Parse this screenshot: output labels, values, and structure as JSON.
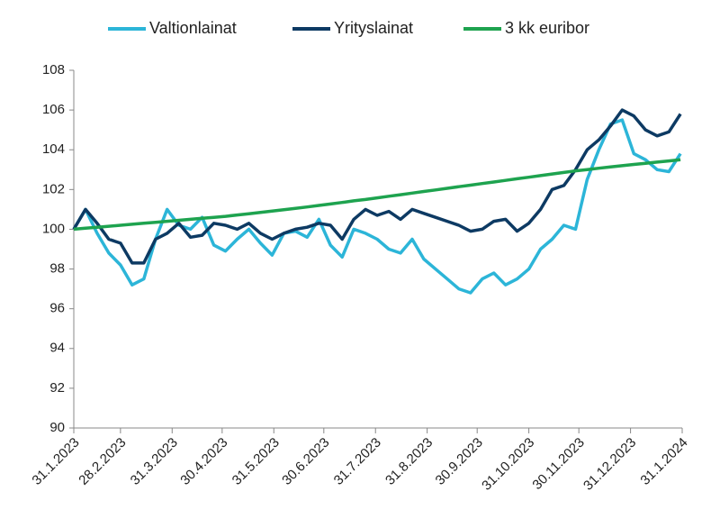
{
  "chart_data": {
    "type": "line",
    "x": [
      "31.1.2023",
      "7.2.2023",
      "14.2.2023",
      "21.2.2023",
      "28.2.2023",
      "7.3.2023",
      "14.3.2023",
      "21.3.2023",
      "28.3.2023",
      "4.4.2023",
      "11.4.2023",
      "18.4.2023",
      "25.4.2023",
      "2.5.2023",
      "9.5.2023",
      "16.5.2023",
      "23.5.2023",
      "30.5.2023",
      "6.6.2023",
      "13.6.2023",
      "20.6.2023",
      "27.6.2023",
      "4.7.2023",
      "11.7.2023",
      "18.7.2023",
      "25.7.2023",
      "1.8.2023",
      "8.8.2023",
      "15.8.2023",
      "22.8.2023",
      "29.8.2023",
      "5.9.2023",
      "12.9.2023",
      "19.9.2023",
      "26.9.2023",
      "3.10.2023",
      "10.10.2023",
      "17.10.2023",
      "24.10.2023",
      "31.10.2023",
      "7.11.2023",
      "14.11.2023",
      "21.11.2023",
      "28.11.2023",
      "5.12.2023",
      "12.12.2023",
      "19.12.2023",
      "26.12.2023",
      "2.1.2024",
      "9.1.2024",
      "16.1.2024",
      "23.1.2024",
      "30.1.2024"
    ],
    "series": [
      {
        "name": "Valtionlainat",
        "color": "#2cb5d8",
        "values": [
          100,
          101.0,
          99.8,
          98.8,
          98.2,
          97.2,
          97.5,
          99.5,
          101.0,
          100.2,
          100.0,
          100.6,
          99.2,
          98.9,
          99.5,
          100.0,
          99.3,
          98.7,
          99.8,
          99.9,
          99.6,
          100.5,
          99.2,
          98.6,
          100.0,
          99.8,
          99.5,
          99.0,
          98.8,
          99.5,
          98.5,
          98.0,
          97.5,
          97.0,
          96.8,
          97.5,
          97.8,
          97.2,
          97.5,
          98.0,
          99.0,
          99.5,
          100.2,
          100.0,
          102.5,
          104.0,
          105.3,
          105.5,
          103.8,
          103.5,
          103.0,
          102.9,
          103.8
        ]
      },
      {
        "name": "Yrityslainat",
        "color": "#0d3a63",
        "values": [
          100,
          101.0,
          100.3,
          99.5,
          99.3,
          98.3,
          98.3,
          99.5,
          99.8,
          100.3,
          99.6,
          99.7,
          100.3,
          100.2,
          100.0,
          100.3,
          99.8,
          99.5,
          99.8,
          100.0,
          100.1,
          100.3,
          100.2,
          99.5,
          100.5,
          101.0,
          100.7,
          100.9,
          100.5,
          101.0,
          100.8,
          100.6,
          100.4,
          100.2,
          99.9,
          100.0,
          100.4,
          100.5,
          99.9,
          100.3,
          101.0,
          102.0,
          102.2,
          103.0,
          104.0,
          104.5,
          105.2,
          106.0,
          105.7,
          105.0,
          104.7,
          104.9,
          105.8
        ]
      },
      {
        "name": "3 kk euribor",
        "color": "#1ea34f",
        "values": [
          100,
          100.05,
          100.1,
          100.15,
          100.2,
          100.25,
          100.3,
          100.35,
          100.4,
          100.45,
          100.5,
          100.55,
          100.6,
          100.65,
          100.72,
          100.78,
          100.85,
          100.92,
          100.98,
          101.05,
          101.12,
          101.2,
          101.27,
          101.35,
          101.43,
          101.5,
          101.58,
          101.66,
          101.74,
          101.82,
          101.9,
          101.98,
          102.06,
          102.14,
          102.22,
          102.3,
          102.38,
          102.46,
          102.54,
          102.62,
          102.7,
          102.78,
          102.86,
          102.94,
          103.0,
          103.07,
          103.14,
          103.2,
          103.26,
          103.32,
          103.38,
          103.44,
          103.5
        ]
      }
    ],
    "ylim": [
      90,
      108
    ],
    "yticks": [
      90,
      92,
      94,
      96,
      98,
      100,
      102,
      104,
      106,
      108
    ],
    "xticks": [
      "31.1.2023",
      "28.2.2023",
      "31.3.2023",
      "30.4.2023",
      "31.5.2023",
      "30.6.2023",
      "31.7.2023",
      "31.8.2023",
      "30.9.2023",
      "31.10.2023",
      "30.11.2023",
      "31.12.2023",
      "31.1.2024"
    ],
    "legend": "top"
  }
}
